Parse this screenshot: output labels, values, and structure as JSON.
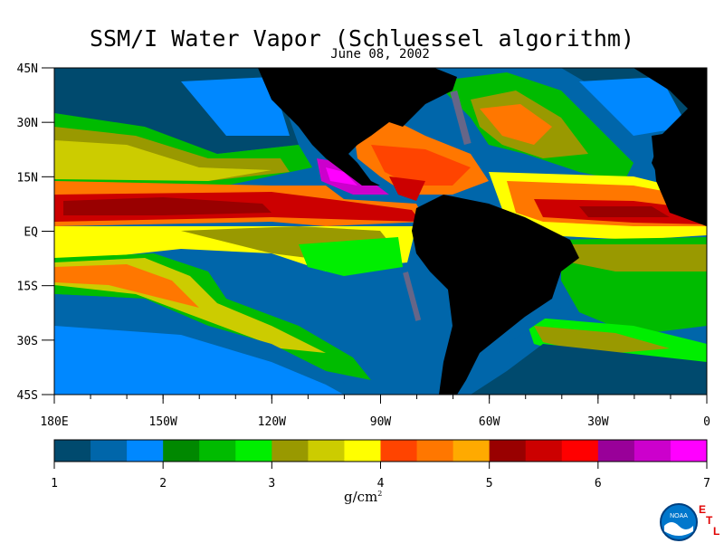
{
  "title": "SSM/I Water Vapor (Schluessel algorithm)",
  "date": "June 08, 2002",
  "lat_labels": [
    "45N",
    "30N",
    "15N",
    "EQ",
    "15S",
    "30S",
    "45S"
  ],
  "lon_labels": [
    "180E",
    "150W",
    "120W",
    "90W",
    "60W",
    "30W",
    "0"
  ],
  "colorbar": {
    "tick_labels": [
      "1",
      "2",
      "3",
      "4",
      "5",
      "6",
      "7"
    ],
    "unit_prefix": "g/cm",
    "unit_sup": "2",
    "colors": [
      "#004a6e",
      "#0066aa",
      "#0088ff",
      "#008800",
      "#00bb00",
      "#00ee00",
      "#999900",
      "#cccc00",
      "#ffff00",
      "#ff4400",
      "#ff7700",
      "#ffaa00",
      "#990000",
      "#cc0000",
      "#ff0000",
      "#990099",
      "#cc00cc",
      "#ff00ff"
    ]
  },
  "logo": {
    "noaa_text": "NOAA",
    "etl": [
      "E",
      "T",
      "L"
    ]
  }
}
